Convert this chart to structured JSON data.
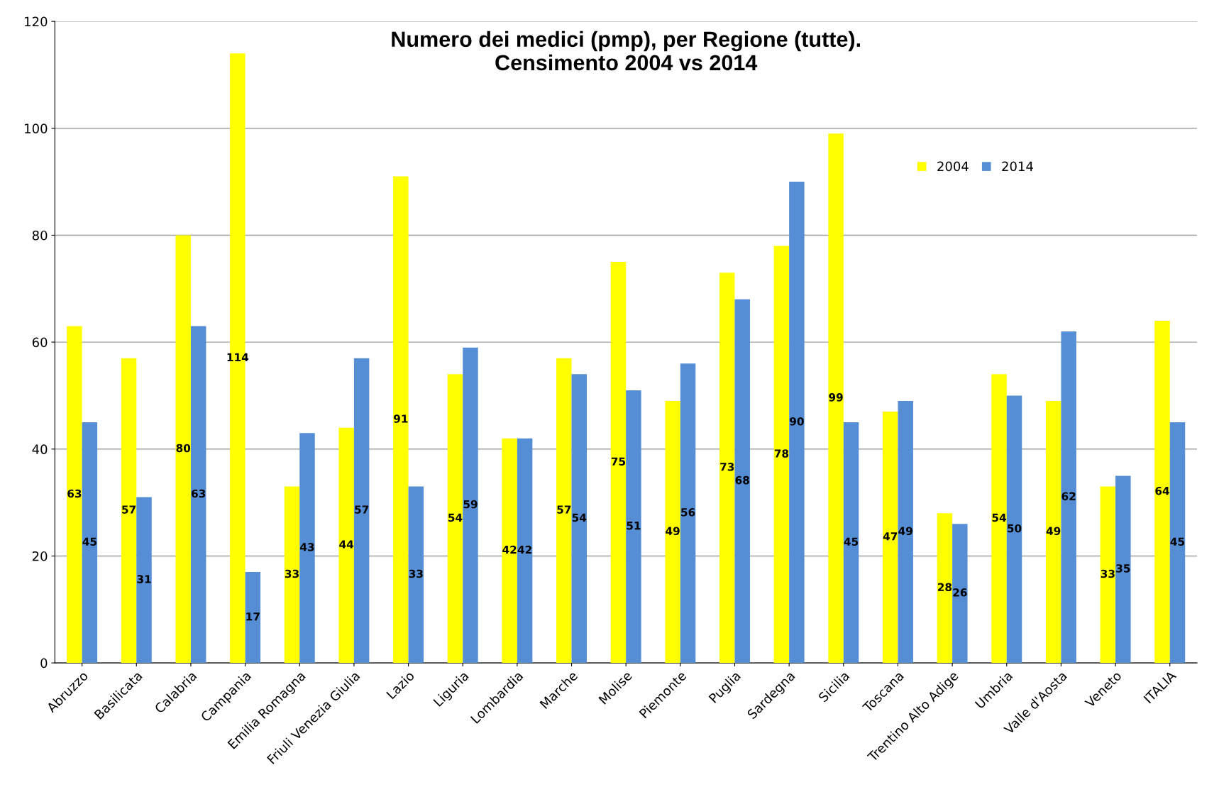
{
  "chart_data": {
    "type": "bar",
    "title": "Numero dei medici (pmp), per Regione (tutte).\nCensimento 2004 vs 2014",
    "categories": [
      "Abruzzo",
      "Basilicata",
      "Calabria",
      "Campania",
      "Emilia Romagna",
      "Friuli Venezia Giulia",
      "Lazio",
      "Liguria",
      "Lombardia",
      "Marche",
      "Molise",
      "Piemonte",
      "Puglia",
      "Sardegna",
      "Sicilia",
      "Toscana",
      "Trentino Alto Adige",
      "Umbria",
      "Valle d'Aosta",
      "Veneto",
      "ITALIA"
    ],
    "series": [
      {
        "name": "2004",
        "color": "#ffff00",
        "values": [
          63,
          57,
          80,
          114,
          33,
          44,
          91,
          54,
          42,
          57,
          75,
          49,
          73,
          78,
          99,
          47,
          28,
          54,
          49,
          33,
          64
        ]
      },
      {
        "name": "2014",
        "color": "#558ed5",
        "values": [
          45,
          31,
          63,
          17,
          43,
          57,
          33,
          59,
          42,
          54,
          51,
          56,
          68,
          90,
          45,
          49,
          26,
          50,
          62,
          35,
          45
        ]
      }
    ],
    "ylim": [
      0,
      120
    ],
    "yticks": [
      0,
      20,
      40,
      60,
      80,
      100,
      120
    ],
    "grid": "y",
    "legend": "top right",
    "data_labels": true
  }
}
